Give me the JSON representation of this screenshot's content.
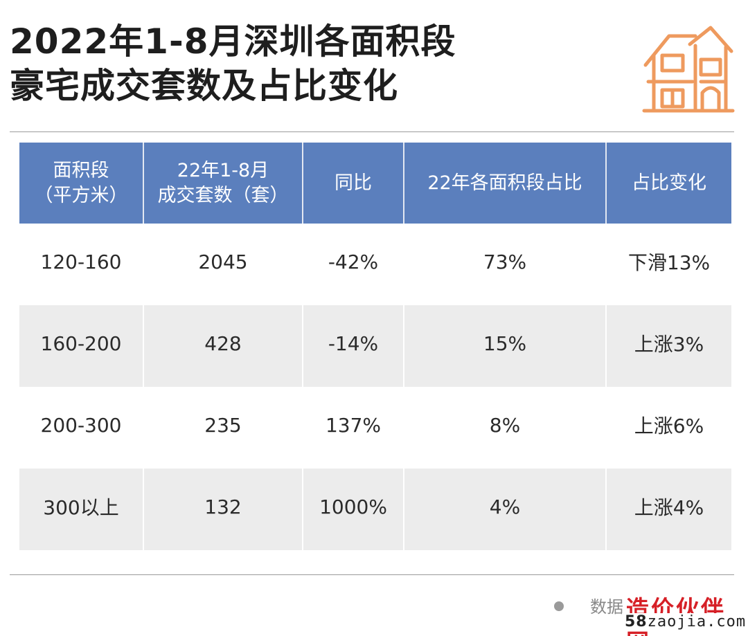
{
  "title": {
    "line1": "2022年1-8月深圳各面积段",
    "line2": "豪宅成交套数及占比变化"
  },
  "illustration": {
    "icon": "house-icon",
    "color": "#ee9a5e"
  },
  "colors": {
    "header_bg": "#5b7fbd",
    "alt_row_bg": "#ececec",
    "rule": "#9a9a9a"
  },
  "table": {
    "headers": [
      {
        "line1": "面积段",
        "line2": "（平方米）"
      },
      {
        "line1": "22年1-8月",
        "line2": "成交套数（套）"
      },
      {
        "line1": "同比",
        "line2": ""
      },
      {
        "line1": "22年各面积段占比",
        "line2": ""
      },
      {
        "line1": "占比变化",
        "line2": ""
      }
    ],
    "rows": [
      [
        "120-160",
        "2045",
        "-42%",
        "73%",
        "下滑13%"
      ],
      [
        "160-200",
        "428",
        "-14%",
        "15%",
        "上涨3%"
      ],
      [
        "200-300",
        "235",
        "137%",
        "8%",
        "上涨6%"
      ],
      [
        "300以上",
        "132",
        "1000%",
        "4%",
        "上涨4%"
      ]
    ]
  },
  "source": {
    "text": "数据"
  },
  "watermark": {
    "name": "造价伙伴网",
    "url_prefix": "58",
    "url_rest": "zaojia.com"
  }
}
